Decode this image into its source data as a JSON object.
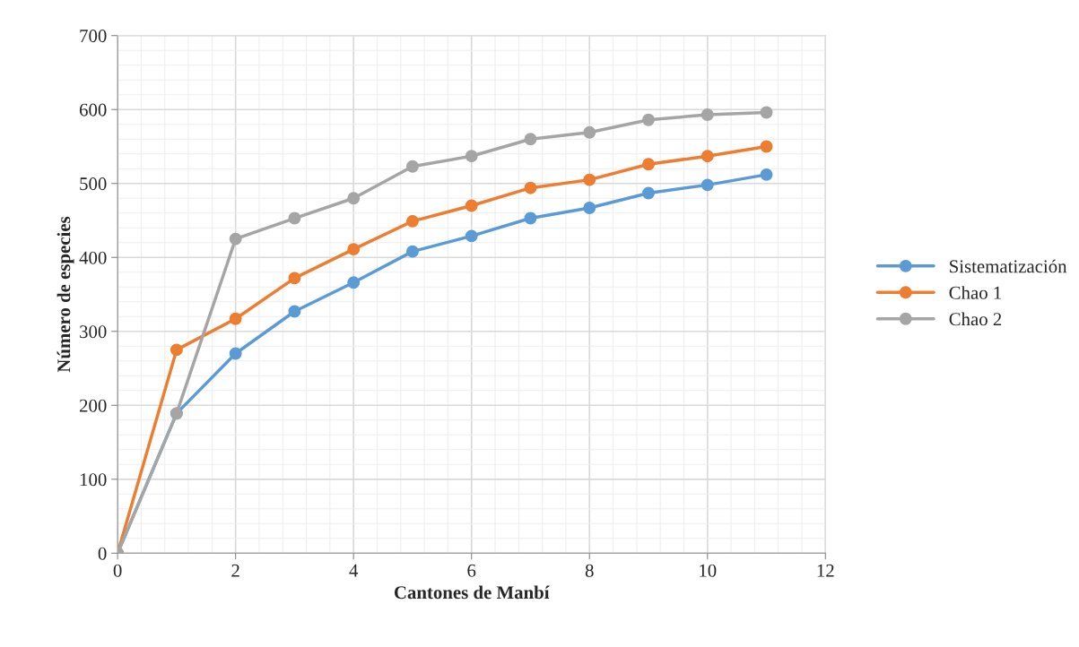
{
  "chart_data": {
    "type": "line",
    "xlabel": "Cantones de Manbí",
    "ylabel": "Número de especies",
    "x": [
      0,
      1,
      2,
      3,
      4,
      5,
      6,
      7,
      8,
      9,
      10,
      11
    ],
    "series": [
      {
        "name": "Sistematización",
        "color": "#5b9bd5",
        "values": [
          0,
          189,
          270,
          327,
          366,
          408,
          429,
          453,
          467,
          487,
          498,
          512
        ]
      },
      {
        "name": "Chao 1",
        "color": "#ed7d31",
        "values": [
          0,
          275,
          317,
          372,
          411,
          449,
          470,
          494,
          505,
          526,
          537,
          550
        ]
      },
      {
        "name": "Chao 2",
        "color": "#a5a5a5",
        "values": [
          0,
          189,
          425,
          453,
          480,
          523,
          537,
          560,
          569,
          586,
          593,
          596
        ]
      }
    ],
    "xlim": [
      0,
      12
    ],
    "xticks": [
      0,
      2,
      4,
      6,
      8,
      10,
      12
    ],
    "ylim": [
      0,
      700
    ],
    "yticks": [
      0,
      100,
      200,
      300,
      400,
      500,
      600,
      700
    ],
    "grid": true,
    "legend": "right",
    "marker": "circle",
    "line_style": "solid"
  }
}
